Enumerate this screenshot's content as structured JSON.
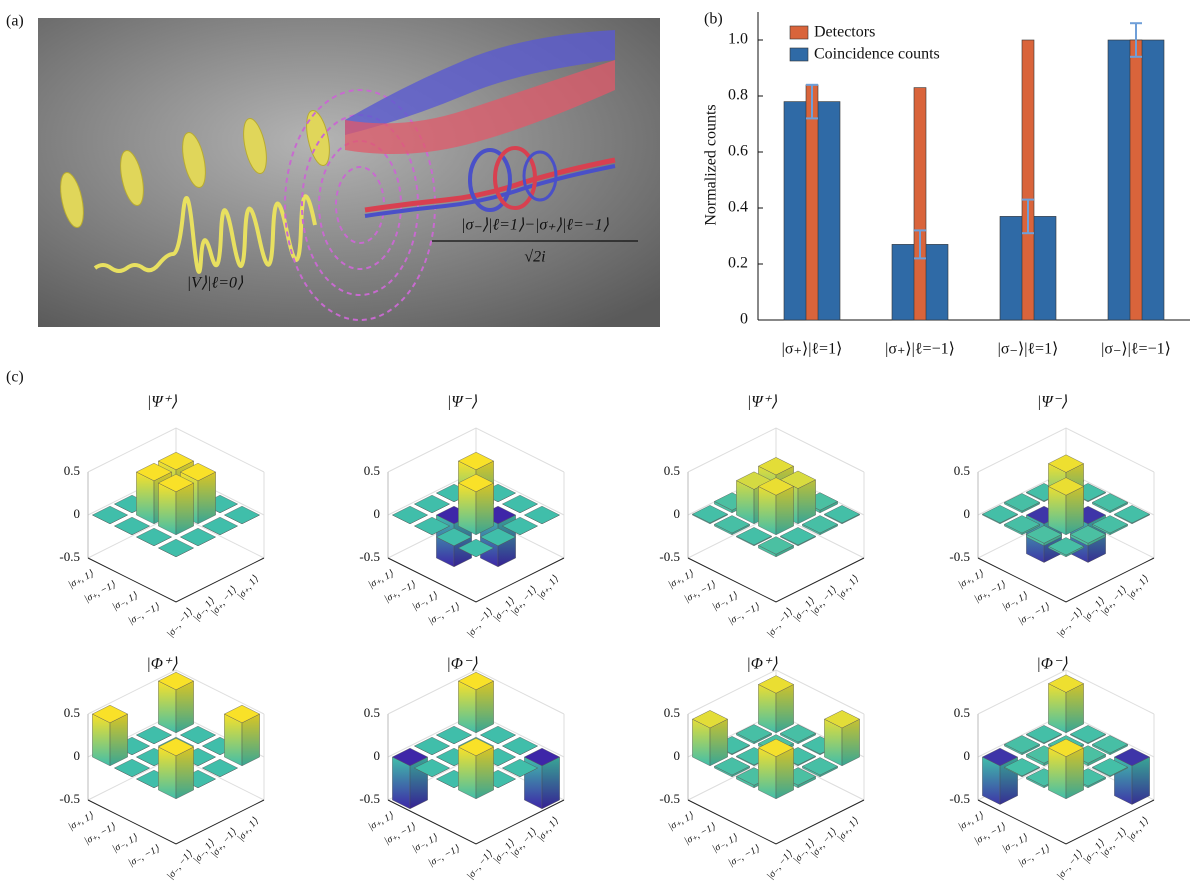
{
  "panel_labels": [
    "(a)",
    "(b)",
    "(c)"
  ],
  "illustration": {
    "input_state": "|V⟩|ℓ=0⟩",
    "output_numerator": "|σ₋⟩|ℓ=1⟩−|σ₊⟩|ℓ=−1⟩",
    "output_denominator": "√2i"
  },
  "chart_data": [
    {
      "type": "bar",
      "ylabel": "Normalized counts",
      "categories": [
        "|σ₊⟩|ℓ=1⟩",
        "|σ₊⟩|ℓ=−1⟩",
        "|σ₋⟩|ℓ=1⟩",
        "|σ₋⟩|ℓ=−1⟩"
      ],
      "series": [
        {
          "name": "Detectors",
          "color": "#d9643b",
          "values": [
            0.84,
            0.83,
            1.0,
            1.0
          ]
        },
        {
          "name": "Coincidence counts",
          "color": "#2f6aa6",
          "values": [
            0.78,
            0.27,
            0.37,
            1.0
          ],
          "errors": [
            0.06,
            0.05,
            0.06,
            0.06
          ]
        }
      ],
      "ylim": [
        0,
        1.1
      ],
      "yticks": [
        0,
        0.2,
        0.4,
        0.6,
        0.8,
        {
          "value": 1,
          "label": "1.0"
        }
      ],
      "legend": "upper left"
    },
    {
      "type": "bar3d",
      "title": "|Ψ⁺⟩",
      "categories": [
        "|σ₊, 1⟩",
        "|σ₊, −1⟩",
        "|σ₋, 1⟩",
        "|σ₋, −1⟩"
      ],
      "values": [
        [
          0,
          0,
          0,
          0
        ],
        [
          0,
          0.5,
          0.5,
          0
        ],
        [
          0,
          0.5,
          0.5,
          0
        ],
        [
          0,
          0,
          0,
          0
        ]
      ],
      "zlim": [
        -0.5,
        0.5
      ],
      "zticks": [
        -0.5,
        0,
        0.5
      ]
    },
    {
      "type": "bar3d",
      "title": "|Ψ⁻⟩",
      "categories": [
        "|σ₊, 1⟩",
        "|σ₊, −1⟩",
        "|σ₋, 1⟩",
        "|σ₋, −1⟩"
      ],
      "values": [
        [
          0,
          0,
          0,
          0
        ],
        [
          0,
          0.5,
          -0.5,
          0
        ],
        [
          0,
          -0.5,
          0.5,
          0
        ],
        [
          0,
          0,
          0,
          0
        ]
      ],
      "zlim": [
        -0.5,
        0.5
      ],
      "zticks": [
        -0.5,
        0,
        0.5
      ]
    },
    {
      "type": "bar3d",
      "title": "|Ψ⁺⟩",
      "categories": [
        "|σ₊, 1⟩",
        "|σ₊, −1⟩",
        "|σ₋, 1⟩",
        "|σ₋, −1⟩"
      ],
      "values": [
        [
          0.02,
          0.01,
          0.03,
          0.01
        ],
        [
          0.01,
          0.44,
          0.41,
          0.02
        ],
        [
          0.03,
          0.4,
          0.46,
          0.01
        ],
        [
          0.01,
          0.02,
          0.01,
          0.03
        ]
      ],
      "zlim": [
        -0.5,
        0.5
      ],
      "zticks": [
        -0.5,
        0,
        0.5
      ]
    },
    {
      "type": "bar3d",
      "title": "|Ψ⁻⟩",
      "categories": [
        "|σ₊, 1⟩",
        "|σ₊, −1⟩",
        "|σ₋, 1⟩",
        "|σ₋, −1⟩"
      ],
      "values": [
        [
          0.02,
          0.01,
          0.02,
          0.01
        ],
        [
          0.01,
          0.47,
          -0.45,
          0.02
        ],
        [
          0.02,
          -0.45,
          0.46,
          0.03
        ],
        [
          0.01,
          0.02,
          0.03,
          0.02
        ]
      ],
      "zlim": [
        -0.5,
        0.5
      ],
      "zticks": [
        -0.5,
        0,
        0.5
      ]
    },
    {
      "type": "bar3d",
      "title": "|Φ⁺⟩",
      "categories": [
        "|σ₊, 1⟩",
        "|σ₊, −1⟩",
        "|σ₋, 1⟩",
        "|σ₋, −1⟩"
      ],
      "values": [
        [
          0.5,
          0,
          0,
          0.5
        ],
        [
          0,
          0,
          0,
          0
        ],
        [
          0,
          0,
          0,
          0
        ],
        [
          0.5,
          0,
          0,
          0.5
        ]
      ],
      "zlim": [
        -0.5,
        0.5
      ],
      "zticks": [
        -0.5,
        0,
        0.5
      ]
    },
    {
      "type": "bar3d",
      "title": "|Φ⁻⟩",
      "categories": [
        "|σ₊, 1⟩",
        "|σ₊, −1⟩",
        "|σ₋, 1⟩",
        "|σ₋, −1⟩"
      ],
      "values": [
        [
          0.5,
          0,
          0,
          -0.5
        ],
        [
          0,
          0,
          0,
          0
        ],
        [
          0,
          0,
          0,
          0
        ],
        [
          -0.5,
          0,
          0,
          0.5
        ]
      ],
      "zlim": [
        -0.5,
        0.5
      ],
      "zticks": [
        -0.5,
        0,
        0.5
      ]
    },
    {
      "type": "bar3d",
      "title": "|Φ⁺⟩",
      "categories": [
        "|σ₊, 1⟩",
        "|σ₊, −1⟩",
        "|σ₋, 1⟩",
        "|σ₋, −1⟩"
      ],
      "values": [
        [
          0.46,
          0.02,
          0.01,
          0.44
        ],
        [
          0.02,
          0.03,
          0.01,
          0.02
        ],
        [
          0.01,
          0.01,
          0.02,
          0.03
        ],
        [
          0.44,
          0.02,
          0.03,
          0.49
        ]
      ],
      "zlim": [
        -0.5,
        0.5
      ],
      "zticks": [
        -0.5,
        0,
        0.5
      ]
    },
    {
      "type": "bar3d",
      "title": "|Φ⁻⟩",
      "categories": [
        "|σ₊, 1⟩",
        "|σ₊, −1⟩",
        "|σ₋, 1⟩",
        "|σ₋, −1⟩"
      ],
      "values": [
        [
          0.47,
          0.01,
          0.02,
          -0.45
        ],
        [
          0.01,
          0.02,
          0.03,
          0.01
        ],
        [
          0.02,
          0.03,
          0.02,
          0.02
        ],
        [
          -0.45,
          0.01,
          0.02,
          0.49
        ]
      ],
      "zlim": [
        -0.5,
        0.5
      ],
      "zticks": [
        -0.5,
        0,
        0.5
      ]
    }
  ]
}
